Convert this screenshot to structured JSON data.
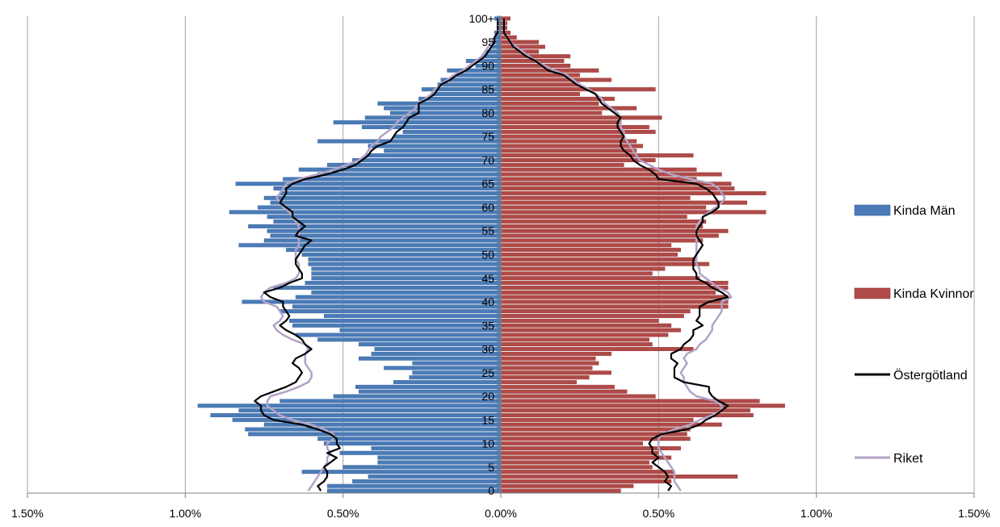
{
  "chart_data": {
    "type": "bar",
    "orientation": "horizontal",
    "xlim": [
      -1.5,
      1.5
    ],
    "x_tick_labels": [
      "1.50%",
      "1.00%",
      "0.50%",
      "0.00%",
      "0.50%",
      "1.00%",
      "1.50%"
    ],
    "x_tick_values": [
      -1.5,
      -1.0,
      -0.5,
      0,
      0.5,
      1.0,
      1.5
    ],
    "age_tick_labels": [
      "0",
      "5",
      "10",
      "15",
      "20",
      "25",
      "30",
      "35",
      "40",
      "45",
      "50",
      "55",
      "60",
      "65",
      "70",
      "75",
      "80",
      "85",
      "90",
      "95",
      "100+"
    ],
    "grid": "vertical",
    "legend_position": "right",
    "colors": {
      "men": "#4a7bb7",
      "men_edge": "#3a659c",
      "women": "#b04a48",
      "women_edge": "#8f3735",
      "ostergotland": "#000000",
      "riket": "#b3a2c7",
      "grid": "#a6a6a6"
    },
    "series": [
      {
        "name": "Kinda Män",
        "kind": "bar",
        "age_values": [
          0.55,
          0.55,
          0.47,
          0.42,
          0.63,
          0.5,
          0.39,
          0.39,
          0.51,
          0.41,
          0.56,
          0.58,
          0.8,
          0.81,
          0.75,
          0.85,
          0.92,
          0.83,
          0.96,
          0.7,
          0.53,
          0.45,
          0.46,
          0.34,
          0.29,
          0.28,
          0.37,
          0.28,
          0.45,
          0.41,
          0.4,
          0.45,
          0.58,
          0.65,
          0.51,
          0.66,
          0.67,
          0.56,
          0.7,
          0.66,
          0.82,
          0.65,
          0.6,
          0.72,
          0.62,
          0.6,
          0.6,
          0.6,
          0.61,
          0.61,
          0.63,
          0.68,
          0.83,
          0.75,
          0.73,
          0.74,
          0.8,
          0.72,
          0.74,
          0.86,
          0.77,
          0.73,
          0.75,
          0.7,
          0.72,
          0.84,
          0.69,
          0.58,
          0.64,
          0.55,
          0.47,
          0.43,
          0.37,
          0.42,
          0.58,
          0.34,
          0.31,
          0.44,
          0.53,
          0.43,
          0.35,
          0.37,
          0.39,
          0.26,
          0.22,
          0.25,
          0.2,
          0.19,
          0.14,
          0.17,
          0.08,
          0.11,
          0.06,
          0.05,
          0.03,
          0.03,
          0.02,
          0.02,
          0.01,
          0.01,
          0.02
        ]
      },
      {
        "name": "Kinda Kvinnor",
        "kind": "bar",
        "age_values": [
          0.38,
          0.42,
          0.54,
          0.75,
          0.55,
          0.48,
          0.47,
          0.54,
          0.5,
          0.57,
          0.45,
          0.6,
          0.59,
          0.6,
          0.7,
          0.61,
          0.8,
          0.79,
          0.9,
          0.82,
          0.49,
          0.4,
          0.36,
          0.24,
          0.28,
          0.35,
          0.29,
          0.31,
          0.3,
          0.35,
          0.61,
          0.48,
          0.47,
          0.53,
          0.57,
          0.54,
          0.5,
          0.58,
          0.6,
          0.72,
          0.72,
          0.72,
          0.68,
          0.72,
          0.72,
          0.63,
          0.48,
          0.52,
          0.66,
          0.62,
          0.56,
          0.57,
          0.54,
          0.64,
          0.69,
          0.72,
          0.64,
          0.65,
          0.59,
          0.84,
          0.65,
          0.78,
          0.6,
          0.84,
          0.74,
          0.73,
          0.62,
          0.7,
          0.62,
          0.39,
          0.49,
          0.61,
          0.43,
          0.45,
          0.43,
          0.39,
          0.49,
          0.47,
          0.38,
          0.51,
          0.32,
          0.43,
          0.31,
          0.36,
          0.25,
          0.49,
          0.25,
          0.35,
          0.25,
          0.31,
          0.22,
          0.2,
          0.22,
          0.12,
          0.14,
          0.12,
          0.05,
          0.03,
          0.02,
          0.02,
          0.03
        ]
      },
      {
        "name": "Östergötland",
        "kind": "line",
        "left": [
          0.57,
          0.58,
          0.56,
          0.55,
          0.55,
          0.56,
          0.54,
          0.52,
          0.55,
          0.51,
          0.52,
          0.52,
          0.54,
          0.58,
          0.63,
          0.72,
          0.75,
          0.76,
          0.76,
          0.78,
          0.76,
          0.72,
          0.68,
          0.65,
          0.64,
          0.63,
          0.64,
          0.66,
          0.65,
          0.62,
          0.6,
          0.62,
          0.63,
          0.65,
          0.68,
          0.7,
          0.68,
          0.67,
          0.68,
          0.69,
          0.69,
          0.73,
          0.75,
          0.7,
          0.67,
          0.63,
          0.63,
          0.64,
          0.65,
          0.65,
          0.64,
          0.63,
          0.62,
          0.6,
          0.65,
          0.64,
          0.62,
          0.64,
          0.66,
          0.66,
          0.68,
          0.7,
          0.69,
          0.68,
          0.68,
          0.66,
          0.62,
          0.55,
          0.5,
          0.46,
          0.44,
          0.42,
          0.41,
          0.39,
          0.35,
          0.34,
          0.33,
          0.31,
          0.3,
          0.29,
          0.26,
          0.26,
          0.26,
          0.23,
          0.21,
          0.2,
          0.19,
          0.16,
          0.14,
          0.11,
          0.09,
          0.07,
          0.05,
          0.04,
          0.03,
          0.02,
          0.02,
          0.01,
          0.01,
          0.01,
          0.01
        ],
        "right": [
          0.53,
          0.54,
          0.52,
          0.53,
          0.52,
          0.5,
          0.48,
          0.5,
          0.48,
          0.48,
          0.47,
          0.48,
          0.51,
          0.59,
          0.63,
          0.65,
          0.68,
          0.7,
          0.72,
          0.69,
          0.67,
          0.66,
          0.66,
          0.58,
          0.55,
          0.55,
          0.55,
          0.56,
          0.54,
          0.54,
          0.57,
          0.58,
          0.6,
          0.61,
          0.61,
          0.64,
          0.62,
          0.63,
          0.63,
          0.63,
          0.66,
          0.72,
          0.7,
          0.67,
          0.65,
          0.62,
          0.62,
          0.61,
          0.61,
          0.61,
          0.62,
          0.63,
          0.64,
          0.63,
          0.62,
          0.62,
          0.63,
          0.64,
          0.64,
          0.67,
          0.69,
          0.69,
          0.68,
          0.67,
          0.65,
          0.62,
          0.5,
          0.49,
          0.47,
          0.44,
          0.42,
          0.41,
          0.39,
          0.38,
          0.38,
          0.39,
          0.38,
          0.37,
          0.37,
          0.38,
          0.36,
          0.34,
          0.32,
          0.31,
          0.3,
          0.27,
          0.24,
          0.22,
          0.2,
          0.15,
          0.13,
          0.11,
          0.08,
          0.06,
          0.04,
          0.03,
          0.02,
          0.01,
          0.01,
          0.01,
          0.01
        ]
      },
      {
        "name": "Riket",
        "kind": "line",
        "left": [
          0.61,
          0.6,
          0.59,
          0.58,
          0.57,
          0.56,
          0.55,
          0.55,
          0.54,
          0.55,
          0.55,
          0.53,
          0.53,
          0.56,
          0.6,
          0.66,
          0.7,
          0.72,
          0.74,
          0.74,
          0.73,
          0.68,
          0.64,
          0.61,
          0.6,
          0.6,
          0.61,
          0.62,
          0.62,
          0.62,
          0.61,
          0.62,
          0.66,
          0.69,
          0.71,
          0.72,
          0.7,
          0.69,
          0.7,
          0.71,
          0.75,
          0.76,
          0.75,
          0.73,
          0.68,
          0.65,
          0.64,
          0.64,
          0.64,
          0.65,
          0.65,
          0.65,
          0.64,
          0.64,
          0.64,
          0.64,
          0.64,
          0.65,
          0.66,
          0.67,
          0.69,
          0.7,
          0.71,
          0.7,
          0.69,
          0.68,
          0.64,
          0.58,
          0.53,
          0.49,
          0.45,
          0.43,
          0.42,
          0.41,
          0.39,
          0.38,
          0.36,
          0.34,
          0.33,
          0.31,
          0.29,
          0.27,
          0.26,
          0.24,
          0.22,
          0.21,
          0.19,
          0.17,
          0.15,
          0.12,
          0.1,
          0.08,
          0.06,
          0.05,
          0.04,
          0.03,
          0.02,
          0.01,
          0.01,
          0.01,
          0.01
        ],
        "right": [
          0.57,
          0.56,
          0.55,
          0.55,
          0.55,
          0.54,
          0.53,
          0.52,
          0.51,
          0.5,
          0.5,
          0.5,
          0.51,
          0.55,
          0.6,
          0.63,
          0.67,
          0.7,
          0.7,
          0.68,
          0.62,
          0.6,
          0.59,
          0.58,
          0.58,
          0.57,
          0.58,
          0.59,
          0.58,
          0.59,
          0.62,
          0.63,
          0.65,
          0.66,
          0.67,
          0.67,
          0.68,
          0.69,
          0.7,
          0.7,
          0.7,
          0.73,
          0.72,
          0.69,
          0.67,
          0.65,
          0.63,
          0.63,
          0.62,
          0.62,
          0.62,
          0.62,
          0.62,
          0.62,
          0.62,
          0.62,
          0.62,
          0.63,
          0.64,
          0.66,
          0.68,
          0.7,
          0.71,
          0.7,
          0.69,
          0.67,
          0.6,
          0.54,
          0.5,
          0.47,
          0.44,
          0.43,
          0.42,
          0.41,
          0.4,
          0.39,
          0.39,
          0.38,
          0.38,
          0.38,
          0.37,
          0.35,
          0.33,
          0.32,
          0.3,
          0.28,
          0.25,
          0.23,
          0.21,
          0.17,
          0.14,
          0.11,
          0.09,
          0.07,
          0.05,
          0.03,
          0.02,
          0.01,
          0.01,
          0.01,
          0.01
        ]
      }
    ]
  }
}
